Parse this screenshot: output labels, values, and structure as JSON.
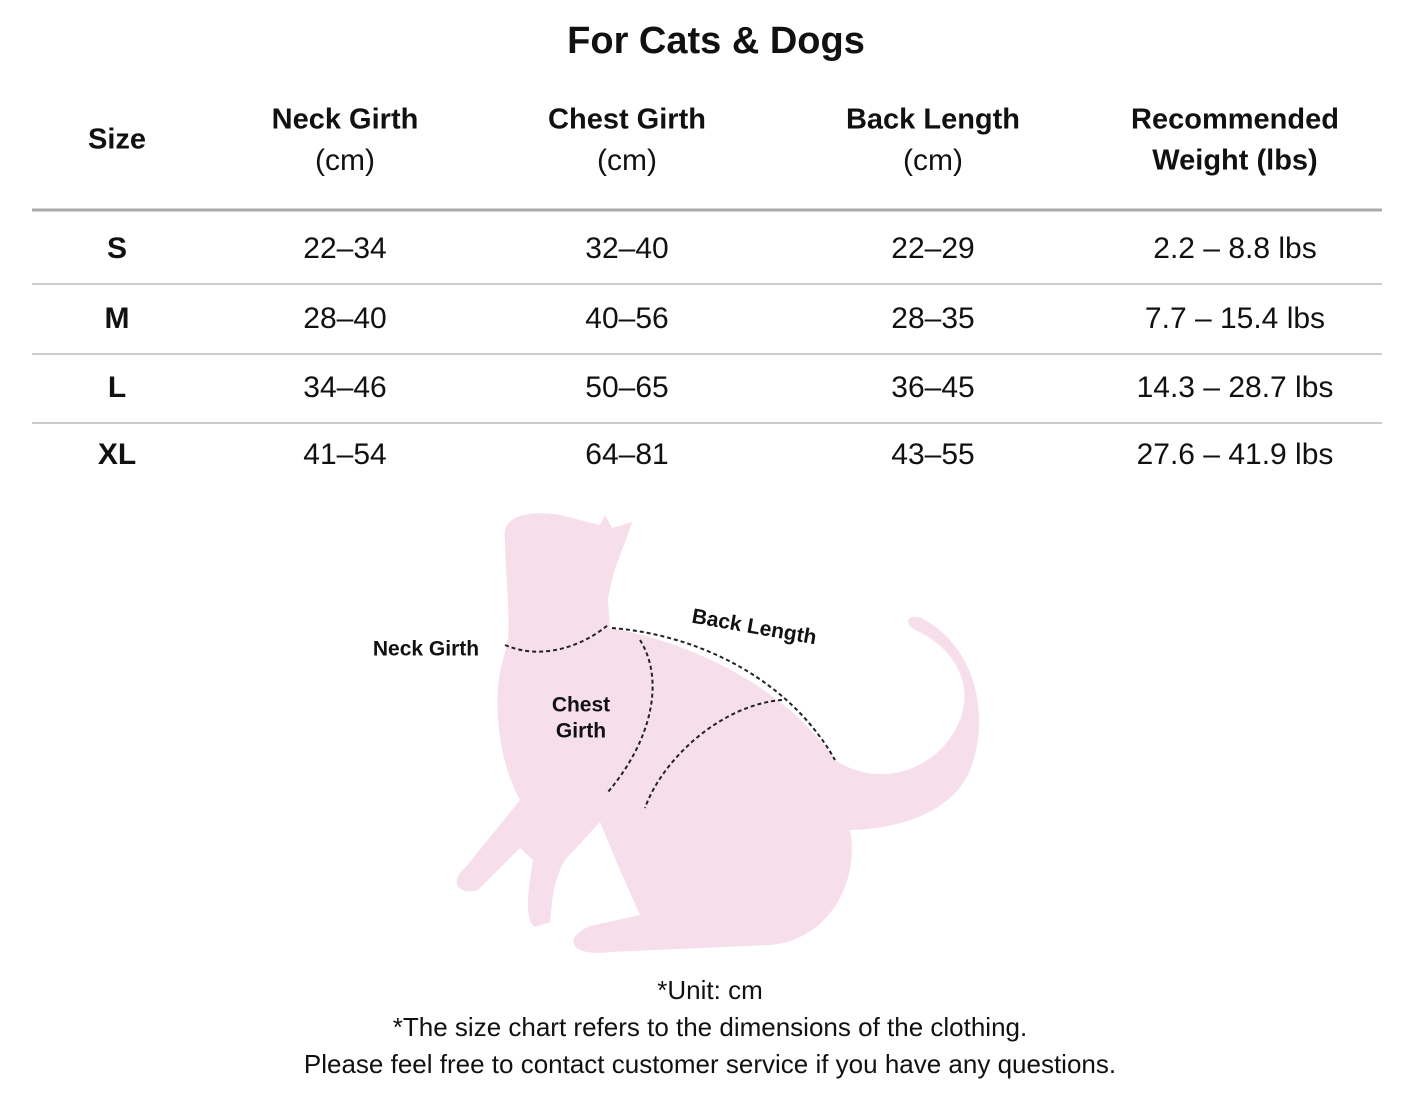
{
  "title": "For Cats & Dogs",
  "table": {
    "header": [
      [
        "Size"
      ],
      [
        "Neck Girth",
        "(cm)"
      ],
      [
        "Chest Girth",
        "(cm)"
      ],
      [
        "Back Length",
        "(cm)"
      ],
      [
        "Recommended",
        "Weight (lbs)"
      ]
    ],
    "rows": [
      [
        "S",
        "22–34",
        "32–40",
        "22–29",
        "2.2 – 8.8 lbs"
      ],
      [
        "M",
        "28–40",
        "40–56",
        "28–35",
        "7.7 – 15.4 lbs"
      ],
      [
        "L",
        "34–46",
        "50–65",
        "36–45",
        "14.3 – 28.7 lbs"
      ],
      [
        "XL",
        "41–54",
        "64–81",
        "43–55",
        "27.6 – 41.9 lbs"
      ]
    ]
  },
  "diagram": {
    "neck_label": "Neck Girth",
    "chest_label": [
      "Chest",
      "Girth"
    ],
    "back_label": "Back Length"
  },
  "notes": [
    "*Unit: cm",
    "*The size chart refers to the dimensions of the clothing.",
    "Please feel free to contact customer service if you have any questions."
  ]
}
